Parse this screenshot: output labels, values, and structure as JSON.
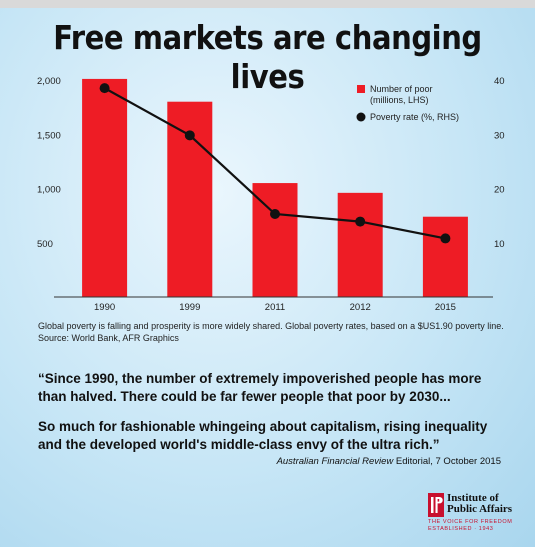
{
  "title": "Free markets are changing lives",
  "chart_data": {
    "type": "bar",
    "categories": [
      "1990",
      "1999",
      "2011",
      "2012",
      "2015"
    ],
    "series": [
      {
        "name": "Number of poor (millions, LHS)",
        "type": "bar",
        "axis": "left",
        "color": "#ee1c25",
        "values": [
          2010,
          1800,
          1050,
          960,
          740
        ]
      },
      {
        "name": "Poverty rate (%, RHS)",
        "type": "line",
        "axis": "right",
        "color": "#111111",
        "values": [
          38.5,
          29.8,
          15.3,
          13.9,
          10.8
        ]
      }
    ],
    "left_axis": {
      "ticks": [
        500,
        1000,
        1500,
        2000
      ],
      "tick_labels": [
        "500",
        "1,000",
        "1,500",
        "2,000"
      ],
      "range": [
        0,
        2000
      ]
    },
    "right_axis": {
      "ticks": [
        10,
        20,
        30,
        40
      ],
      "tick_labels": [
        "10",
        "20",
        "30",
        "40"
      ],
      "range": [
        0,
        40
      ]
    },
    "legend_placement": "top-right",
    "grid": false
  },
  "caption": "Global poverty is falling and prosperity is more widely shared. Global poverty rates, based on a $US1.90 poverty line. Source: World Bank, AFR Graphics",
  "quote_1": "“Since 1990, the number of extremely impoverished people has more than halved. There could be far fewer people that poor by 2030...",
  "quote_2": "So much for fashionable whingeing about capitalism, rising inequality and the developed world's middle-class envy of the ultra rich.”",
  "source_publication": "Australian Financial Review",
  "source_detail": " Editorial, 7 October 2015",
  "logo": {
    "name_line1": "Institute of",
    "name_line2": "Public Affairs",
    "tagline_1": "THE VOICE FOR FREEDOM",
    "tagline_2": "ESTABLISHED · 1943",
    "color": "#c8102e"
  }
}
